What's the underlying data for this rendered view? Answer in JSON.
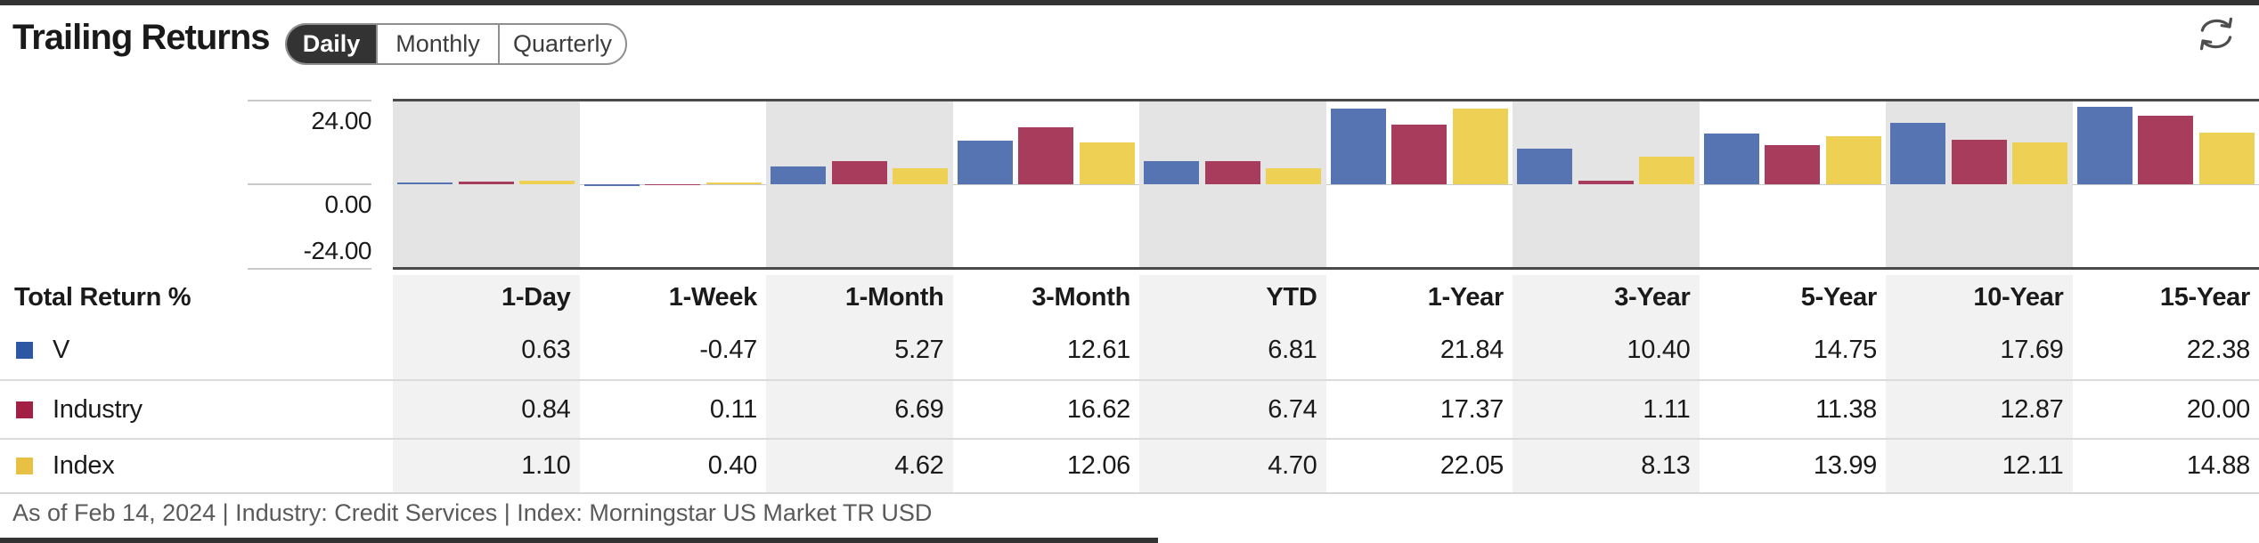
{
  "header": {
    "title": "Trailing Returns",
    "tabs": [
      {
        "label": "Daily",
        "active": true
      },
      {
        "label": "Monthly",
        "active": false
      },
      {
        "label": "Quarterly",
        "active": false
      }
    ]
  },
  "chart_data": {
    "type": "bar",
    "title": "Trailing Returns (Daily)",
    "categories": [
      "1-Day",
      "1-Week",
      "1-Month",
      "3-Month",
      "YTD",
      "1-Year",
      "3-Year",
      "5-Year",
      "10-Year",
      "15-Year"
    ],
    "series": [
      {
        "name": "V",
        "color": "#5574B1",
        "values": [
          0.63,
          -0.47,
          5.27,
          12.61,
          6.81,
          21.84,
          10.4,
          14.75,
          17.69,
          22.38
        ]
      },
      {
        "name": "Industry",
        "color": "#A83C5C",
        "values": [
          0.84,
          0.11,
          6.69,
          16.62,
          6.74,
          17.37,
          1.11,
          11.38,
          12.87,
          20.0
        ]
      },
      {
        "name": "Index",
        "color": "#EED054",
        "values": [
          1.1,
          0.4,
          4.62,
          12.06,
          4.7,
          22.05,
          8.13,
          13.99,
          12.11,
          14.88
        ]
      }
    ],
    "ylim": [
      -24,
      24
    ],
    "yticks": [
      "24.00",
      "0.00",
      "-24.00"
    ],
    "grid": "left tick marks only, zero baseline",
    "legend_position": "table rows below chart",
    "shaded_group_background": "#E4E4E4",
    "shaded_groups": [
      "1-Day",
      "1-Month",
      "YTD",
      "3-Year",
      "10-Year"
    ]
  },
  "table": {
    "corner_label": "Total Return %",
    "columns": [
      "1-Day",
      "1-Week",
      "1-Month",
      "3-Month",
      "YTD",
      "1-Year",
      "3-Year",
      "5-Year",
      "10-Year",
      "15-Year"
    ],
    "rows": [
      {
        "name": "V",
        "swatch_color": "#2D56A5",
        "values": [
          "0.63",
          "-0.47",
          "5.27",
          "12.61",
          "6.81",
          "21.84",
          "10.40",
          "14.75",
          "17.69",
          "22.38"
        ]
      },
      {
        "name": "Industry",
        "swatch_color": "#A32045",
        "values": [
          "0.84",
          "0.11",
          "6.69",
          "16.62",
          "6.74",
          "17.37",
          "1.11",
          "11.38",
          "12.87",
          "20.00"
        ]
      },
      {
        "name": "Index",
        "swatch_color": "#E8C044",
        "values": [
          "1.10",
          "0.40",
          "4.62",
          "12.06",
          "4.70",
          "22.05",
          "8.13",
          "13.99",
          "12.11",
          "14.88"
        ]
      }
    ],
    "shaded_column_background": "#F2F2F2"
  },
  "footer": {
    "text": "As of Feb 14, 2024 | Industry: Credit Services | Index: Morningstar US Market TR USD"
  },
  "icons": {
    "refresh": "refresh-cycle-arrows"
  },
  "colors": {
    "accent_dark": "#333333",
    "chart_border": "#4A4A4A",
    "tick_gray": "#C9C9C9",
    "row_separator": "#DBDBDB",
    "footer_text": "#5A5A5A"
  }
}
